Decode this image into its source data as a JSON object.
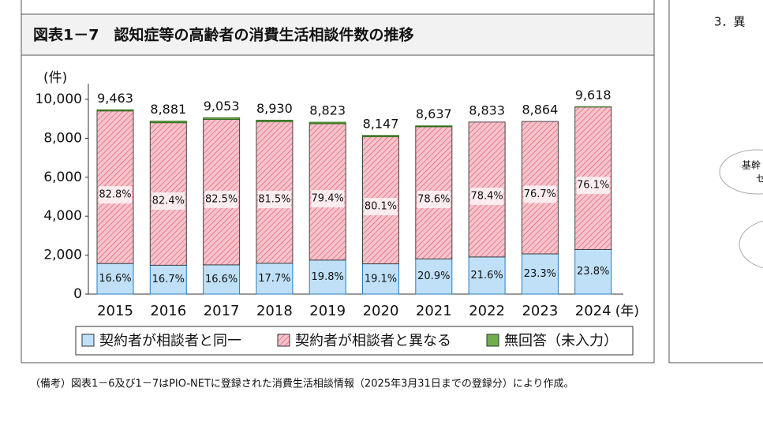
{
  "chart_data": {
    "type": "stacked-bar",
    "title": "図表1－7　認知症等の高齢者の消費生活相談件数の推移",
    "y_unit": "(件)",
    "x_unit": "(年)",
    "categories": [
      "2015",
      "2016",
      "2017",
      "2018",
      "2019",
      "2020",
      "2021",
      "2022",
      "2023",
      "2024"
    ],
    "totals": [
      9463,
      8881,
      9053,
      8930,
      8823,
      8147,
      8637,
      8833,
      8864,
      9618
    ],
    "total_labels": [
      "9,463",
      "8,881",
      "9,053",
      "8,930",
      "8,823",
      "8,147",
      "8,637",
      "8,833",
      "8,864",
      "9,618"
    ],
    "series": [
      {
        "name": "契約者が相談者と同一",
        "color": "#bfe0f7",
        "values": [
          1571,
          1483,
          1503,
          1581,
          1747,
          1556,
          1805,
          1908,
          2065,
          2289
        ],
        "share_labels": [
          "16.6%",
          "16.7%",
          "16.6%",
          "17.7%",
          "19.8%",
          "19.1%",
          "20.9%",
          "21.6%",
          "23.3%",
          "23.8%"
        ]
      },
      {
        "name": "契約者が相談者と異なる",
        "color": "#f7c3cb",
        "values": [
          7835,
          7318,
          7469,
          7278,
          7005,
          6526,
          6789,
          6925,
          6799,
          7319
        ],
        "share_labels": [
          "82.8%",
          "82.4%",
          "82.5%",
          "81.5%",
          "79.4%",
          "80.1%",
          "78.6%",
          "78.4%",
          "76.7%",
          "76.1%"
        ]
      },
      {
        "name": "無回答（未入力）",
        "color": "#6fae4f",
        "values": [
          57,
          80,
          81,
          71,
          71,
          65,
          43,
          0,
          0,
          10
        ]
      }
    ],
    "ylim": [
      0,
      10000
    ],
    "yticks": [
      0,
      {
        "value": 2000,
        "label": "2,000"
      },
      {
        "value": 4000,
        "label": "4,000"
      },
      {
        "value": 6000,
        "label": "6,000"
      },
      {
        "value": 8000,
        "label": "8,000"
      },
      {
        "value": 10000,
        "label": "10,000"
      }
    ]
  },
  "note": "（備考）図表1－6及び1－7はPIO-NETに登録された消費生活相談情報（2025年3月31日までの登録分）により作成。",
  "side": {
    "heading": "3．異",
    "bubble": "基幹",
    "bubble2": "セ"
  }
}
